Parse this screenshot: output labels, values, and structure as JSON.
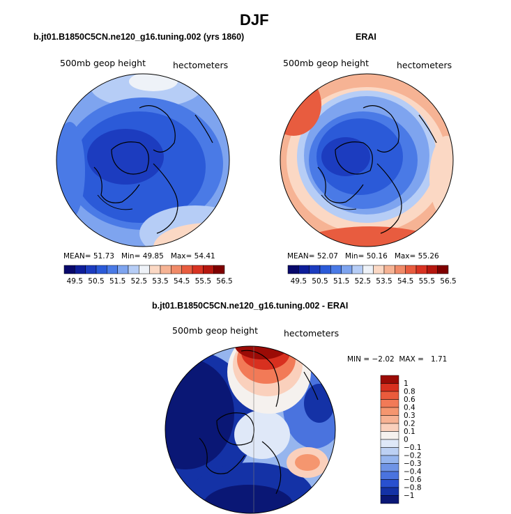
{
  "title": "DJF",
  "panels": [
    {
      "title": "b.jt01.B1850C5CN.ne120_g16.tuning.002 (yrs 1860)",
      "field_label": "500mb geop height",
      "units_label": "hectometers",
      "stats": {
        "mean_label": "MEAN=",
        "mean": "51.73",
        "min_label": "Min=",
        "min": "49.85",
        "max_label": "Max=",
        "max": "54.41"
      }
    },
    {
      "title": "ERAI",
      "field_label": "500mb geop height",
      "units_label": "hectometers",
      "stats": {
        "mean_label": "MEAN=",
        "mean": "52.07",
        "min_label": "Min=",
        "min": "50.16",
        "max_label": "Max=",
        "max": "55.26"
      }
    },
    {
      "title": "b.jt01.B1850C5CN.ne120_g16.tuning.002 - ERAI",
      "field_label": "500mb geop height",
      "units_label": "hectometers",
      "stats": {
        "min_label": "MIN =",
        "min": "−2.02",
        "max_label": "MAX =",
        "max": "1.71"
      }
    }
  ],
  "colorbar_horizontal": {
    "labels": [
      "49.5",
      "50.5",
      "51.5",
      "52.5",
      "53.5",
      "54.5",
      "55.5",
      "56.5"
    ],
    "colors": [
      "#08086b",
      "#0e1e9a",
      "#1c3cbf",
      "#2b5ad8",
      "#4a7ae6",
      "#7ea4ef",
      "#b6cdf6",
      "#eef2f8",
      "#fbd8c4",
      "#f6b394",
      "#f08a68",
      "#e85c3f",
      "#d83322",
      "#b5170f",
      "#7f0000"
    ]
  },
  "colorbar_vertical": {
    "labels": [
      "1",
      "0.8",
      "0.6",
      "0.4",
      "0.3",
      "0.2",
      "0.1",
      "0",
      "−0.1",
      "−0.2",
      "−0.3",
      "−0.4",
      "−0.6",
      "−0.8",
      "−1"
    ],
    "colors": [
      "#9b0b06",
      "#d8301f",
      "#ea5b3c",
      "#f27a57",
      "#f5966f",
      "#f7b293",
      "#fad0bc",
      "#f5f1ee",
      "#dfe8f8",
      "#bcd0f3",
      "#96b5ee",
      "#6f94e6",
      "#4a73de",
      "#2950cf",
      "#1432a6",
      "#0a1775"
    ]
  }
}
